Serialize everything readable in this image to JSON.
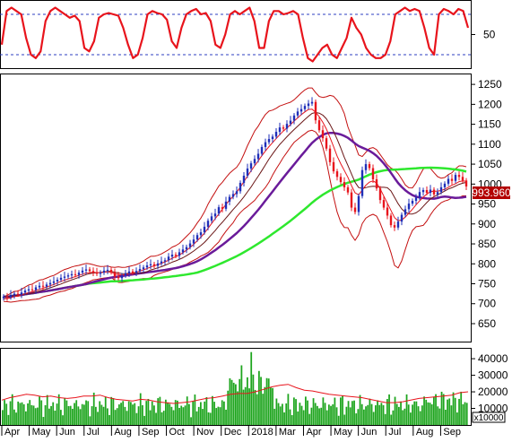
{
  "chart_data": [
    {
      "panel": "oscillator",
      "type": "line",
      "yticks": [
        50
      ],
      "ylim": [
        0,
        100
      ],
      "guide_levels": [
        80,
        20
      ],
      "colors": {
        "line": "#e8141c",
        "guides": "#2d3fc0"
      },
      "series": [
        {
          "values": [
            35,
            85,
            90,
            85,
            80,
            45,
            20,
            15,
            25,
            70,
            85,
            90,
            85,
            80,
            75,
            78,
            70,
            30,
            25,
            40,
            75,
            80,
            82,
            80,
            78,
            60,
            35,
            15,
            20,
            45,
            80,
            85,
            82,
            80,
            72,
            40,
            30,
            60,
            80,
            85,
            88,
            80,
            82,
            70,
            35,
            30,
            50,
            80,
            85,
            80,
            85,
            90,
            70,
            30,
            30,
            70,
            85,
            85,
            80,
            82,
            85,
            80,
            45,
            15,
            10,
            20,
            30,
            35,
            20,
            15,
            30,
            45,
            75,
            60,
            50,
            30,
            20,
            15,
            15,
            20,
            40,
            80,
            85,
            90,
            85,
            88,
            85,
            60,
            30,
            20,
            80,
            88,
            85,
            80,
            88,
            85,
            60
          ]
        }
      ]
    },
    {
      "panel": "price",
      "type": "candlestick",
      "yticks": [
        1250,
        1200,
        1150,
        1100,
        1050,
        1000,
        950,
        900,
        850,
        800,
        750,
        700,
        650
      ],
      "ylim": [
        605,
        1275
      ],
      "last_value_label": "993.960",
      "colors": {
        "up": "#1f2fb8",
        "down": "#e8141c",
        "ma_short": "#e8141c",
        "ma_mid": "#6b1616",
        "ma_long_purple": "#6a1b9a",
        "ma_long_green": "#2ee82e",
        "band": "#c41010"
      },
      "close": [
        718,
        716,
        722,
        725,
        723,
        728,
        733,
        736,
        734,
        741,
        745,
        743,
        748,
        752,
        756,
        760,
        765,
        768,
        771,
        774,
        772,
        778,
        783,
        786,
        782,
        778,
        775,
        778,
        783,
        785,
        779,
        768,
        764,
        771,
        776,
        781,
        778,
        782,
        787,
        791,
        796,
        799,
        795,
        801,
        806,
        809,
        818,
        823,
        820,
        829,
        836,
        842,
        851,
        861,
        872,
        879,
        893,
        908,
        919,
        926,
        942,
        938,
        956,
        968,
        975,
        982,
        1003,
        1021,
        1039,
        1052,
        1063,
        1076,
        1093,
        1105,
        1113,
        1119,
        1131,
        1142,
        1139,
        1151,
        1159,
        1172,
        1182,
        1188,
        1196,
        1202,
        1206,
        1160,
        1135,
        1115,
        1089,
        1055,
        1032,
        1018,
        1005,
        992,
        979,
        941,
        930,
        970,
        1035,
        1050,
        1040,
        1012,
        989,
        960,
        941,
        921,
        897,
        891,
        906,
        923,
        937,
        951,
        958,
        966,
        980,
        985,
        978,
        986,
        974,
        980,
        992,
        1001,
        1013,
        1008,
        1023,
        1018,
        1009,
        994
      ],
      "ma_short": [
        712,
        713,
        715,
        718,
        719,
        722,
        725,
        728,
        730,
        733,
        736,
        739,
        742,
        745,
        748,
        752,
        756,
        759,
        762,
        765,
        768,
        771,
        774,
        777,
        778,
        779,
        778,
        778,
        779,
        780,
        779,
        775,
        773,
        772,
        773,
        775,
        777,
        779,
        782,
        785,
        788,
        792,
        795,
        798,
        801,
        805,
        809,
        814,
        818,
        822,
        828,
        834,
        841,
        849,
        858,
        867,
        877,
        889,
        901,
        913,
        925,
        937,
        949,
        960,
        969,
        980,
        992,
        1006,
        1020,
        1033,
        1046,
        1058,
        1071,
        1083,
        1094,
        1104,
        1114,
        1124,
        1133,
        1141,
        1149,
        1158,
        1166,
        1174,
        1181,
        1187,
        1188,
        1180,
        1169,
        1155,
        1138,
        1117,
        1094,
        1070,
        1051,
        1034,
        1017,
        996,
        978,
        973,
        985,
        997,
        1005,
        1008,
        1003,
        988,
        970,
        952,
        934,
        916,
        908,
        910,
        917,
        927,
        937,
        948,
        958,
        967,
        975,
        981,
        982,
        982,
        984,
        987,
        992,
        997,
        1001,
        1006,
        1008,
        1007
      ]
    },
    {
      "panel": "volume",
      "type": "bar",
      "yticks": [
        40000,
        30000,
        20000,
        10000
      ],
      "ylim": [
        0,
        46000
      ],
      "unit_label": "x10000",
      "colors": {
        "bar": "#1ea51e",
        "ma": "#e8141c"
      },
      "categories": [
        "Apr",
        "May",
        "Jun",
        "Jul",
        "Aug",
        "Sep",
        "Oct",
        "Nov",
        "Dec",
        "2018",
        "Mar",
        "Apr",
        "May",
        "Jun",
        "Jul",
        "Aug",
        "Sep"
      ],
      "ma_values": [
        15000,
        16500,
        17500,
        18500,
        18000,
        17000,
        17500,
        16500,
        16000,
        16500,
        17500,
        17500,
        18000,
        16500,
        15500,
        15000,
        14500,
        15500,
        15000,
        14000,
        13500,
        13000,
        13500,
        14000,
        15000,
        16000,
        16500,
        17500,
        18500,
        19000,
        19000,
        20000,
        21500,
        23000,
        24000,
        24500,
        22500,
        21000,
        20500,
        19500,
        18500,
        18000,
        17500,
        17000,
        16500,
        15500,
        14500,
        13500,
        13500,
        14000,
        15000,
        16000,
        16500,
        17000,
        17500,
        18000,
        19500,
        20000
      ]
    }
  ]
}
